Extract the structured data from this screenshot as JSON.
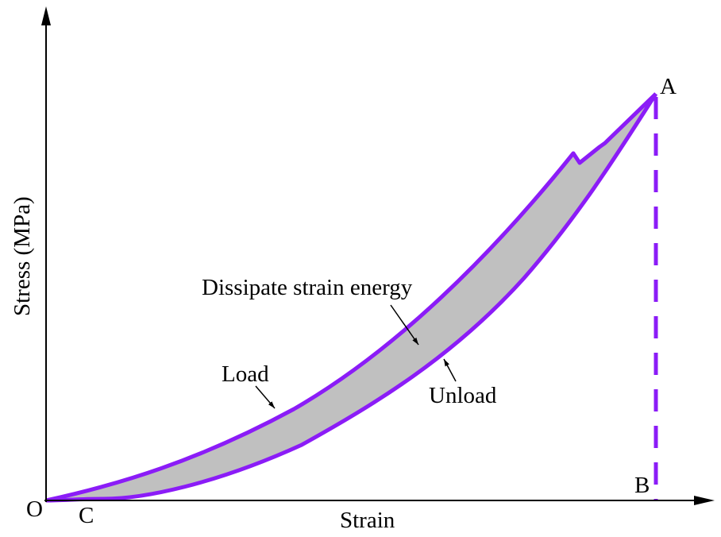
{
  "axes": {
    "x_label": "Strain",
    "y_label": "Stress (MPa)"
  },
  "points": {
    "origin": "O",
    "peak": "A",
    "foot": "B",
    "residual": "C"
  },
  "annotations": {
    "load": "Load",
    "unload": "Unload",
    "dissipated": "Dissipate strain energy"
  },
  "colors": {
    "curve": "#8B1CF7",
    "fill": "#C0C0C0",
    "axis": "#000000"
  }
}
